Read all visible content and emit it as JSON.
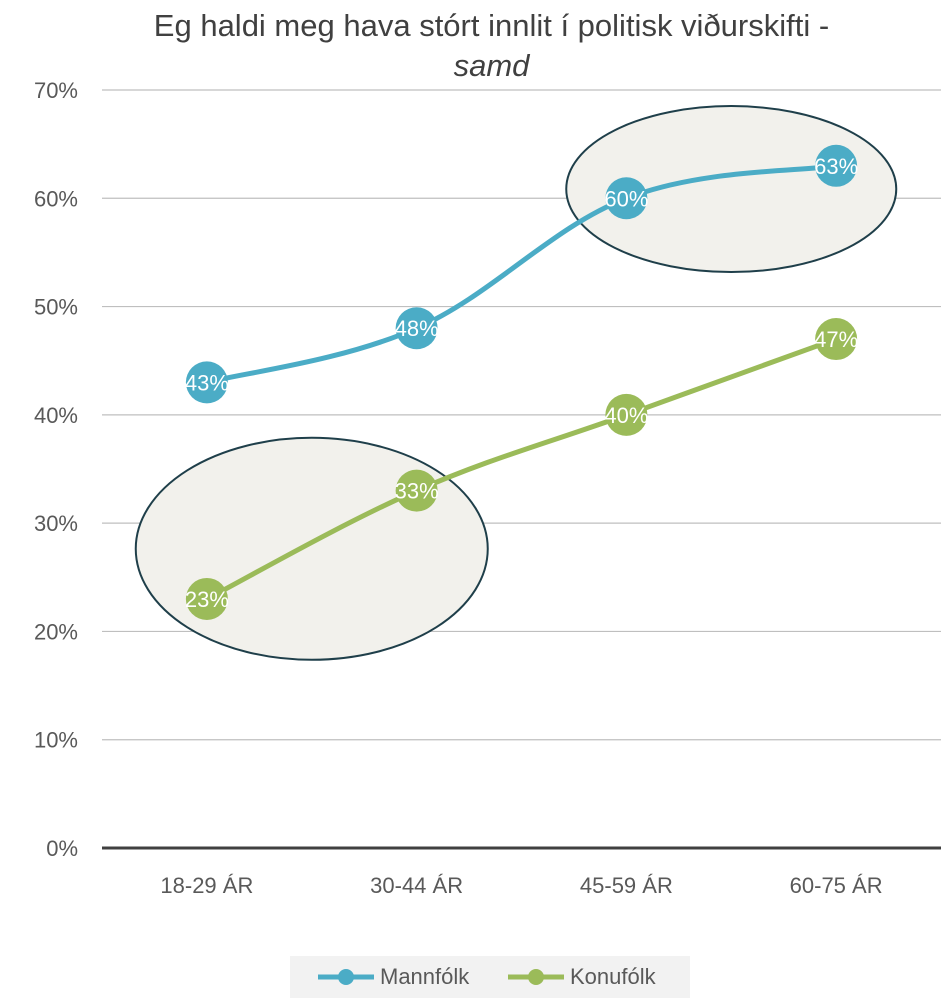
{
  "title": "Eg haldi meg hava stórt innlit í politisk viðurskifti -",
  "subtitle": "samd",
  "chart_data": {
    "type": "line",
    "categories": [
      "18-29 ÁR",
      "30-44 ÁR",
      "45-59 ÁR",
      "60-75 ÁR"
    ],
    "series": [
      {
        "name": "Mannfólk",
        "values": [
          43,
          48,
          60,
          63
        ],
        "labels": [
          "43%",
          "48%",
          "60%",
          "63%"
        ],
        "color": "#4bacc6"
      },
      {
        "name": "Konufólk",
        "values": [
          23,
          33,
          40,
          47
        ],
        "labels": [
          "23%",
          "33%",
          "40%",
          "47%"
        ],
        "color": "#9bbb59"
      }
    ],
    "ylim": [
      0,
      70
    ],
    "yticks": [
      "0%",
      "10%",
      "20%",
      "30%",
      "40%",
      "50%",
      "60%",
      "70%"
    ],
    "grid": true,
    "legend": "bottom",
    "annotations": [
      "ellipse around Mannfólk 45-59 ÁR and 60-75 ÁR",
      "ellipse around Konufólk 18-29 ÁR and 30-44 ÁR"
    ]
  }
}
